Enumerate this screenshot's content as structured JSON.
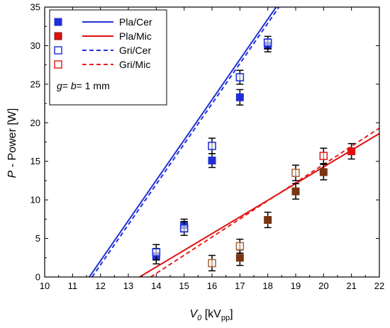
{
  "chart_data": {
    "type": "scatter",
    "xlim": [
      10,
      22
    ],
    "ylim": [
      0,
      35
    ],
    "xticks": [
      "10",
      "11",
      "12",
      "13",
      "14",
      "15",
      "16",
      "17",
      "18",
      "19",
      "20",
      "21",
      "22"
    ],
    "yticks": [
      "0",
      "5",
      "10",
      "15",
      "20",
      "25",
      "30",
      "35"
    ],
    "xlabel_main": "V",
    "xlabel_sub": "0",
    "xlabel_unit_pre": " [kV",
    "xlabel_unit_sub": "pp",
    "xlabel_unit_post": "]",
    "ylabel_italic": "P",
    "ylabel_rest": " - Power [W]",
    "grid": false,
    "legend_position": "top-left",
    "colors": {
      "pla_cer": "#1f2fd6",
      "pla_mic": "#e01010",
      "gri_cer": "#2233dd",
      "gri_mic": "#e82020",
      "brown": "#7a3510"
    },
    "series": [
      {
        "name": "Pla/Cer",
        "marker": "filled-square",
        "color": "#1f2fd6",
        "points": [
          {
            "x": 14,
            "y": 2.7,
            "err": 1.0
          },
          {
            "x": 15,
            "y": 6.7,
            "err": 0.8
          },
          {
            "x": 16,
            "y": 15.1,
            "err": 0.9
          },
          {
            "x": 17,
            "y": 23.3,
            "err": 1.0
          },
          {
            "x": 18,
            "y": 30.0,
            "err": 0.8
          }
        ]
      },
      {
        "name": "Pla/Mic",
        "marker": "filled-square",
        "color": "#e01010",
        "points": [
          {
            "x": 17,
            "y": 2.5,
            "err": 1.0,
            "color": "#7a3510"
          },
          {
            "x": 18,
            "y": 7.4,
            "err": 1.0,
            "color": "#7a3510"
          },
          {
            "x": 19,
            "y": 11.1,
            "err": 1.0,
            "color": "#7a3510"
          },
          {
            "x": 20,
            "y": 13.6,
            "err": 1.0,
            "color": "#7a3510"
          },
          {
            "x": 21,
            "y": 16.3,
            "err": 1.0
          }
        ]
      },
      {
        "name": "Gri/Cer",
        "marker": "open-square",
        "color": "#2233dd",
        "points": [
          {
            "x": 14,
            "y": 3.2,
            "err": 1.0
          },
          {
            "x": 15,
            "y": 6.3,
            "err": 0.9
          },
          {
            "x": 16,
            "y": 17.0,
            "err": 1.0
          },
          {
            "x": 17,
            "y": 25.9,
            "err": 0.9
          },
          {
            "x": 18,
            "y": 30.4,
            "err": 0.8
          }
        ]
      },
      {
        "name": "Gri/Mic",
        "marker": "open-square",
        "color": "#e82020",
        "points": [
          {
            "x": 16,
            "y": 1.8,
            "err": 1.0,
            "color": "#b06a3a"
          },
          {
            "x": 17,
            "y": 4.0,
            "err": 0.9,
            "color": "#b06a3a"
          },
          {
            "x": 19,
            "y": 13.5,
            "err": 1.0,
            "color": "#b06a3a"
          },
          {
            "x": 20,
            "y": 15.7,
            "err": 1.0
          }
        ]
      }
    ],
    "fits": [
      {
        "name": "Pla/Cer",
        "style": "solid",
        "color": "#1f2fd6",
        "x1": 11.6,
        "y1": 0,
        "x2": 18.3,
        "y2": 35
      },
      {
        "name": "Gri/Cer",
        "style": "dashed",
        "color": "#2233dd",
        "x1": 11.7,
        "y1": 0,
        "x2": 18.4,
        "y2": 35
      },
      {
        "name": "Pla/Mic",
        "style": "solid",
        "color": "#e01010",
        "x1": 13.4,
        "y1": 0,
        "x2": 22,
        "y2": 18.6
      },
      {
        "name": "Gri/Mic",
        "style": "dashed",
        "color": "#e82020",
        "x1": 13.8,
        "y1": 0,
        "x2": 22,
        "y2": 19.3
      }
    ],
    "legend": {
      "entries": [
        {
          "label": "Pla/Cer",
          "kind": "filled-square",
          "color": "#1f2fd6"
        },
        {
          "label": "Pla/Cer",
          "kind": "solid-line",
          "color": "#1f2fd6"
        },
        {
          "label": "Pla/Mic",
          "kind": "filled-square",
          "color": "#e01010"
        },
        {
          "label": "Pla/Mic",
          "kind": "solid-line",
          "color": "#e01010"
        },
        {
          "label": "Gri/Cer",
          "kind": "open-square",
          "color": "#2233dd"
        },
        {
          "label": "Gri/Cer",
          "kind": "dashed-line",
          "color": "#2233dd"
        },
        {
          "label": "Gri/Mic",
          "kind": "open-square",
          "color": "#e82020"
        },
        {
          "label": "Gri/Mic",
          "kind": "dashed-line",
          "color": "#e82020"
        }
      ],
      "note_g": "g",
      "note_mid": "= ",
      "note_b": "b",
      "note_rest": "= 1 mm"
    }
  }
}
